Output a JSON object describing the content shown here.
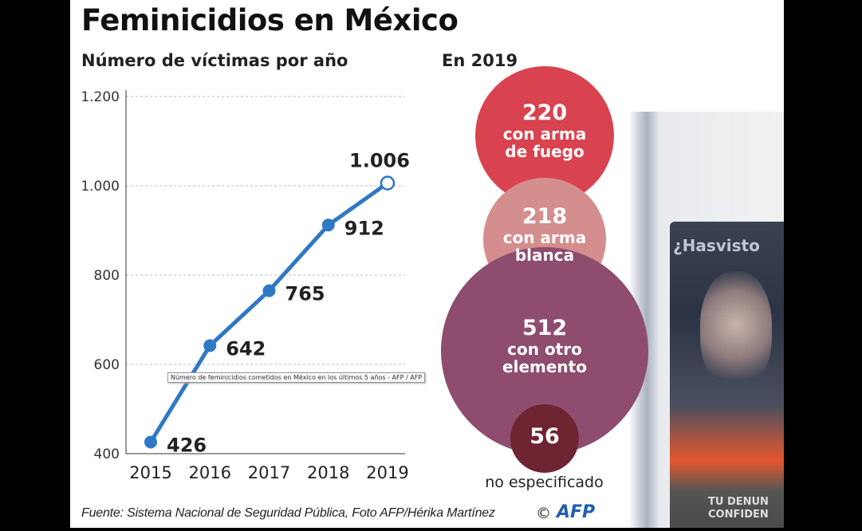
{
  "title": "Feminicidios en México",
  "subtitle": "Número de víctimas por año",
  "right_subtitle": "En 2019",
  "tooltip": "Número de feminicidios cometidos en México en los últimos 5 años - AFP / AFP",
  "footer": "Fuente: Sistema Nacional de Seguridad Pública, Foto AFP/Hérika Martínez",
  "copyright": "©",
  "logo": "AFP",
  "photo": {
    "poster_heading": "¿Hasvisto",
    "poster_footer_1": "TU DENUN",
    "poster_footer_2": "CONFIDEN"
  },
  "colors": {
    "line": "#2f78c4",
    "grid": "#bbbbbb",
    "firearm": "#d9434f",
    "blade": "#d48e8d",
    "other": "#8e4d6e",
    "unspecified": "#6f2431"
  },
  "chart_data": [
    {
      "type": "line",
      "title": "Número de víctimas por año",
      "x": [
        "2015",
        "2016",
        "2017",
        "2018",
        "2019"
      ],
      "values": [
        426,
        642,
        765,
        912,
        1006
      ],
      "data_labels": [
        "426",
        "642",
        "765",
        "912",
        "1.006"
      ],
      "ylim": [
        400,
        1200
      ],
      "yticks": [
        400,
        600,
        800,
        1000,
        1200
      ],
      "ytick_labels": [
        "400",
        "600",
        "800",
        "1.000",
        "1.200"
      ],
      "grid": true
    },
    {
      "type": "bubble",
      "title": "En 2019",
      "items": [
        {
          "value": 220,
          "label": "220",
          "text1": "con arma",
          "text2": "de fuego",
          "color": "#d9434f"
        },
        {
          "value": 218,
          "label": "218",
          "text1": "con arma",
          "text2": "blanca",
          "color": "#d48e8d"
        },
        {
          "value": 512,
          "label": "512",
          "text1": "con otro",
          "text2": "elemento",
          "color": "#8e4d6e"
        },
        {
          "value": 56,
          "label": "56",
          "text1": "no especificado",
          "text2": "",
          "color": "#6f2431"
        }
      ]
    }
  ]
}
